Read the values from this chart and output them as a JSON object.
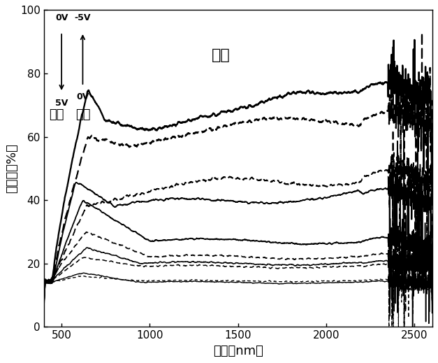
{
  "title": "电压",
  "xlabel": "波长（nm）",
  "ylabel": "透光率（%）",
  "xlim": [
    400,
    2600
  ],
  "ylim": [
    0,
    100
  ],
  "xticks": [
    500,
    1000,
    1500,
    2000,
    2500
  ],
  "yticks": [
    0,
    20,
    40,
    60,
    80,
    100
  ],
  "annotation_solid": "实线",
  "annotation_dashed": "虚线",
  "label_5V": "5V",
  "label_0V_solid": "0V",
  "label_0V_dashed": "0V",
  "label_neg5V": "-5V",
  "background_color": "#ffffff"
}
